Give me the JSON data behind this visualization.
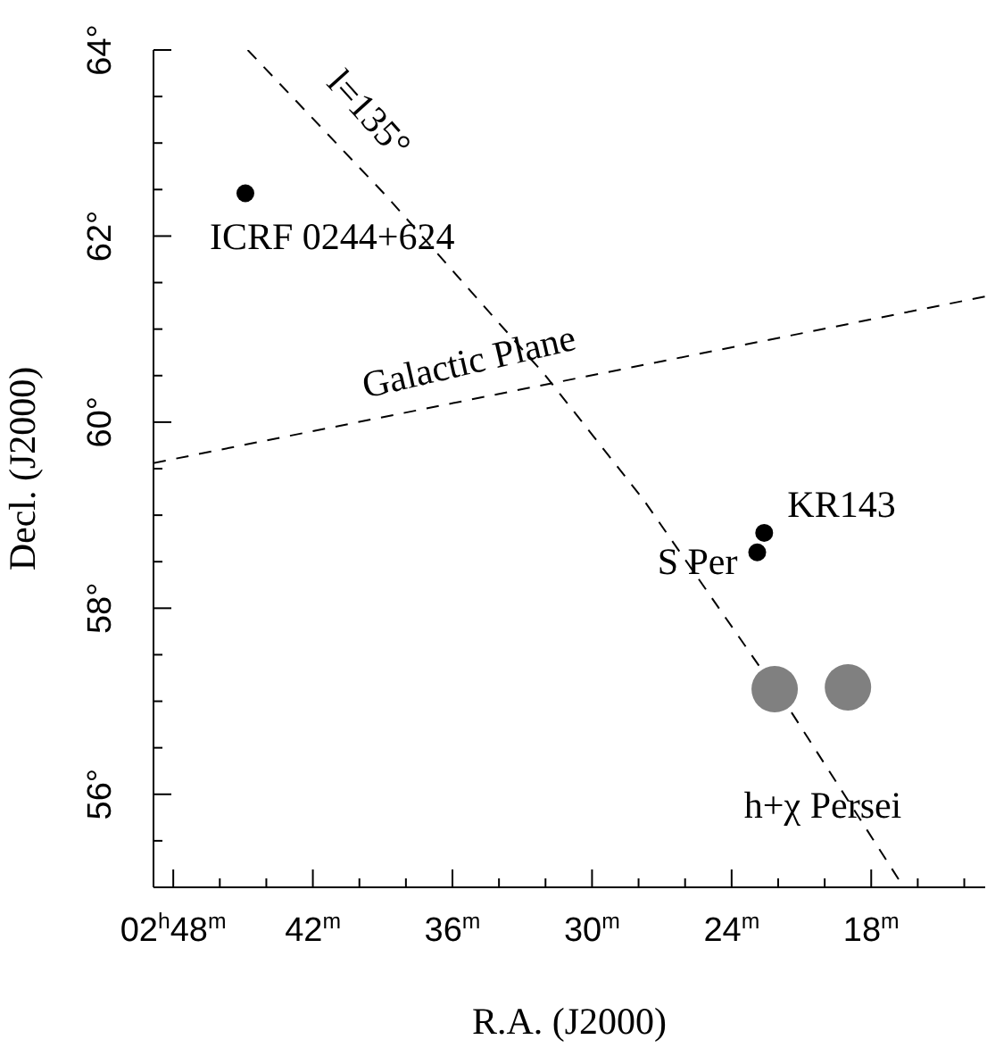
{
  "chart_data": {
    "type": "scatter",
    "xlabel": "R.A. (J2000)",
    "ylabel": "Decl. (J2000)",
    "xlim": [
      48.85,
      13.1
    ],
    "ylim": [
      55,
      64
    ],
    "xticks": [
      {
        "value": 48,
        "label": "02$^{h}$48$^{m}$"
      },
      {
        "value": 46,
        "label": null
      },
      {
        "value": 44,
        "label": null
      },
      {
        "value": 42,
        "label": "42$^{m}$"
      },
      {
        "value": 40,
        "label": null
      },
      {
        "value": 38,
        "label": null
      },
      {
        "value": 36,
        "label": "36$^{m}$"
      },
      {
        "value": 34,
        "label": null
      },
      {
        "value": 32,
        "label": null
      },
      {
        "value": 30,
        "label": "30$^{m}$"
      },
      {
        "value": 28,
        "label": null
      },
      {
        "value": 26,
        "label": null
      },
      {
        "value": 24,
        "label": "24$^{m}$"
      },
      {
        "value": 22,
        "label": null
      },
      {
        "value": 20,
        "label": null
      },
      {
        "value": 18,
        "label": "18$^{m}$"
      },
      {
        "value": 16,
        "label": null
      },
      {
        "value": 14,
        "label": null
      }
    ],
    "yticks": [
      {
        "value": 55.5,
        "label": null
      },
      {
        "value": 56,
        "label": "56°"
      },
      {
        "value": 56.5,
        "label": null
      },
      {
        "value": 57,
        "label": null
      },
      {
        "value": 57.5,
        "label": null
      },
      {
        "value": 58,
        "label": "58°"
      },
      {
        "value": 58.5,
        "label": null
      },
      {
        "value": 59,
        "label": null
      },
      {
        "value": 59.5,
        "label": null
      },
      {
        "value": 60,
        "label": "60°"
      },
      {
        "value": 60.5,
        "label": null
      },
      {
        "value": 61,
        "label": null
      },
      {
        "value": 61.5,
        "label": null
      },
      {
        "value": 62,
        "label": "62°"
      },
      {
        "value": 62.5,
        "label": null
      },
      {
        "value": 63,
        "label": null
      },
      {
        "value": 63.5,
        "label": null
      },
      {
        "value": 64,
        "label": "64°"
      }
    ],
    "marker": "circle",
    "series": [
      {
        "color": "#000000",
        "x": [
          44.9,
          22.6,
          22.9
        ],
        "values": [
          62.46,
          58.81,
          58.6
        ]
      },
      {
        "color": "#808080",
        "x": [
          22.15,
          19.0
        ],
        "values": [
          57.13,
          57.15
        ]
      },
      {
        "type": "line",
        "color": "#000000",
        "line_style": "dashed",
        "marker": "none",
        "x": [
          48.85,
          13.1
        ],
        "values": [
          59.56,
          61.35
        ]
      },
      {
        "type": "line",
        "color": "#000000",
        "line_style": "dashed",
        "marker": "none",
        "x": [
          44.8,
          38.8,
          32.0,
          27.8,
          21.4,
          16.6
        ],
        "values": [
          64,
          62.42,
          60.5,
          59.17,
          56.87,
          55
        ]
      }
    ],
    "annotations": [
      {
        "text": "ICRF 0244+624",
        "x": 44.9,
        "y": 62.46
      },
      {
        "text": "KR143",
        "x": 22.6,
        "y": 58.81
      },
      {
        "text": "S Per",
        "x": 22.9,
        "y": 58.6
      },
      {
        "text": "h+χ Persei",
        "x": 22.15,
        "y": 57.13
      },
      {
        "text": "l=135°",
        "x": 41.8,
        "y": 63.2
      },
      {
        "text": "Galactic Plane",
        "x": 35.3,
        "y": 60.23
      }
    ]
  }
}
